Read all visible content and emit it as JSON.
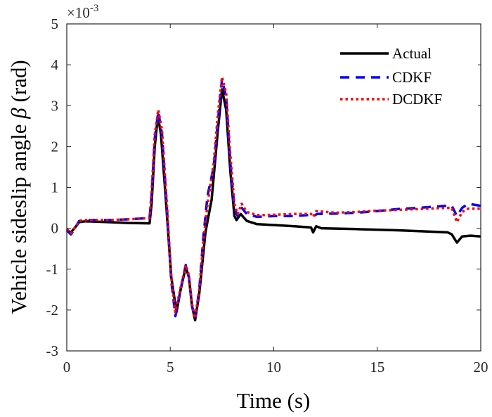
{
  "chart_data": {
    "type": "line",
    "title": "",
    "xlabel": "Time (s)",
    "ylabel_prefix": "Vehicle sideslip angle ",
    "ylabel_symbol": "β",
    "ylabel_suffix": " (rad)",
    "y_multiplier_base": "×10",
    "y_multiplier_exp": "-3",
    "xlim": [
      0,
      20
    ],
    "ylim": [
      -3,
      5
    ],
    "xticks": [
      0,
      5,
      10,
      15,
      20
    ],
    "yticks": [
      -3,
      -2,
      -1,
      0,
      1,
      2,
      3,
      4,
      5
    ],
    "xtick_labels": [
      "0",
      "5",
      "10",
      "15",
      "20"
    ],
    "ytick_labels": [
      "-3",
      "-2",
      "-1",
      "0",
      "1",
      "2",
      "3",
      "4",
      "5"
    ],
    "grid": false,
    "legend_position": "top-right",
    "series": [
      {
        "name": "Actual",
        "color": "#000000",
        "style": "solid",
        "points": [
          [
            0,
            -0.05
          ],
          [
            0.2,
            -0.1
          ],
          [
            0.4,
            0.02
          ],
          [
            0.6,
            0.15
          ],
          [
            0.9,
            0.17
          ],
          [
            2,
            0.15
          ],
          [
            3,
            0.13
          ],
          [
            4.0,
            0.12
          ],
          [
            4.1,
            0.6
          ],
          [
            4.25,
            2.0
          ],
          [
            4.4,
            2.75
          ],
          [
            4.55,
            2.3
          ],
          [
            4.8,
            0.6
          ],
          [
            5.05,
            -1.2
          ],
          [
            5.3,
            -2.05
          ],
          [
            5.5,
            -1.5
          ],
          [
            5.75,
            -0.95
          ],
          [
            5.9,
            -1.2
          ],
          [
            6.05,
            -1.9
          ],
          [
            6.2,
            -2.25
          ],
          [
            6.4,
            -1.6
          ],
          [
            6.7,
            -0.1
          ],
          [
            7.0,
            0.7
          ],
          [
            7.3,
            2.4
          ],
          [
            7.5,
            3.4
          ],
          [
            7.7,
            2.9
          ],
          [
            7.9,
            1.4
          ],
          [
            8.1,
            0.3
          ],
          [
            8.2,
            0.2
          ],
          [
            8.4,
            0.35
          ],
          [
            8.7,
            0.18
          ],
          [
            9.2,
            0.1
          ],
          [
            10,
            0.08
          ],
          [
            11,
            0.05
          ],
          [
            11.8,
            0.02
          ],
          [
            11.9,
            -0.1
          ],
          [
            12.05,
            0.05
          ],
          [
            12.3,
            0.0
          ],
          [
            14,
            -0.02
          ],
          [
            16,
            -0.05
          ],
          [
            18.4,
            -0.1
          ],
          [
            18.6,
            -0.15
          ],
          [
            18.85,
            -0.35
          ],
          [
            19.1,
            -0.2
          ],
          [
            19.5,
            -0.18
          ],
          [
            20,
            -0.2
          ]
        ]
      },
      {
        "name": "CDKF",
        "color": "#0000ff",
        "style": "dashed",
        "points": [
          [
            0,
            -0.05
          ],
          [
            0.2,
            -0.15
          ],
          [
            0.4,
            0.0
          ],
          [
            0.6,
            0.18
          ],
          [
            0.9,
            0.2
          ],
          [
            2,
            0.2
          ],
          [
            3,
            0.22
          ],
          [
            4.0,
            0.25
          ],
          [
            4.1,
            0.8
          ],
          [
            4.25,
            2.2
          ],
          [
            4.42,
            2.85
          ],
          [
            4.6,
            2.3
          ],
          [
            4.85,
            0.4
          ],
          [
            5.05,
            -1.3
          ],
          [
            5.25,
            -2.15
          ],
          [
            5.5,
            -1.5
          ],
          [
            5.75,
            -0.9
          ],
          [
            5.9,
            -1.2
          ],
          [
            6.05,
            -1.9
          ],
          [
            6.2,
            -2.2
          ],
          [
            6.4,
            -1.5
          ],
          [
            6.6,
            -0.2
          ],
          [
            6.8,
            0.8
          ],
          [
            7.1,
            1.5
          ],
          [
            7.3,
            2.6
          ],
          [
            7.5,
            3.65
          ],
          [
            7.7,
            3.2
          ],
          [
            7.9,
            1.6
          ],
          [
            8.1,
            0.5
          ],
          [
            8.25,
            0.3
          ],
          [
            8.45,
            0.5
          ],
          [
            8.7,
            0.35
          ],
          [
            9.2,
            0.28
          ],
          [
            10,
            0.3
          ],
          [
            11,
            0.3
          ],
          [
            11.8,
            0.33
          ],
          [
            11.9,
            0.3
          ],
          [
            12.1,
            0.35
          ],
          [
            13,
            0.36
          ],
          [
            14,
            0.38
          ],
          [
            15,
            0.42
          ],
          [
            16,
            0.47
          ],
          [
            17,
            0.5
          ],
          [
            18.3,
            0.55
          ],
          [
            18.6,
            0.55
          ],
          [
            18.85,
            0.3
          ],
          [
            19.1,
            0.5
          ],
          [
            19.4,
            0.6
          ],
          [
            20,
            0.55
          ]
        ]
      },
      {
        "name": "DCDKF",
        "color": "#ff0000",
        "style": "dotted",
        "points": [
          [
            0,
            -0.02
          ],
          [
            0.2,
            -0.12
          ],
          [
            0.4,
            0.02
          ],
          [
            0.6,
            0.18
          ],
          [
            0.9,
            0.2
          ],
          [
            2,
            0.2
          ],
          [
            3,
            0.22
          ],
          [
            4.0,
            0.25
          ],
          [
            4.1,
            0.9
          ],
          [
            4.25,
            2.3
          ],
          [
            4.42,
            2.9
          ],
          [
            4.6,
            2.4
          ],
          [
            4.85,
            0.5
          ],
          [
            5.05,
            -1.2
          ],
          [
            5.25,
            -2.05
          ],
          [
            5.5,
            -1.45
          ],
          [
            5.75,
            -0.9
          ],
          [
            5.9,
            -1.15
          ],
          [
            6.05,
            -1.85
          ],
          [
            6.2,
            -2.2
          ],
          [
            6.4,
            -1.5
          ],
          [
            6.6,
            -0.3
          ],
          [
            6.8,
            0.6
          ],
          [
            7.1,
            1.6
          ],
          [
            7.3,
            2.8
          ],
          [
            7.5,
            3.7
          ],
          [
            7.7,
            3.3
          ],
          [
            7.9,
            1.8
          ],
          [
            8.1,
            0.6
          ],
          [
            8.25,
            0.35
          ],
          [
            8.45,
            0.6
          ],
          [
            8.7,
            0.4
          ],
          [
            9.2,
            0.32
          ],
          [
            10,
            0.33
          ],
          [
            11,
            0.35
          ],
          [
            11.8,
            0.35
          ],
          [
            11.9,
            0.28
          ],
          [
            12.05,
            0.42
          ],
          [
            13,
            0.38
          ],
          [
            14,
            0.4
          ],
          [
            15,
            0.43
          ],
          [
            16,
            0.45
          ],
          [
            17,
            0.47
          ],
          [
            18.3,
            0.5
          ],
          [
            18.6,
            0.5
          ],
          [
            18.85,
            0.15
          ],
          [
            19.1,
            0.4
          ],
          [
            19.4,
            0.48
          ],
          [
            20,
            0.48
          ]
        ]
      }
    ]
  }
}
